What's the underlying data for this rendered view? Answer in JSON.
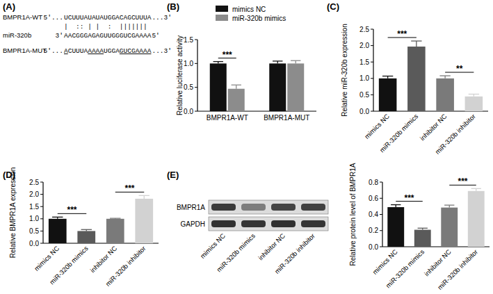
{
  "sequence_diagram": {
    "title": "(A)",
    "wt": {
      "label": "BMPR1A-WT",
      "prefix": "5'...",
      "sequence": "UCUUUAUAUAUGGACAGCUUUA",
      "suffix": "...3'"
    },
    "pairing": "|  :: | |  :  ||||||| ",
    "mirna": {
      "label": "miR-320b",
      "prefix": "3'",
      "sequence": "AACGGGAGAGUUGGGUCGAAAA",
      "suffix": "5'"
    },
    "mut": {
      "label": "BMPR1A-MUT",
      "prefix": "5'...",
      "segments": [
        {
          "text": "A",
          "underline": true
        },
        {
          "text": "CUUUA",
          "underline": false
        },
        {
          "text": "AAAA",
          "underline": true
        },
        {
          "text": "UGGA",
          "underline": false
        },
        {
          "text": "GUCGAAAA",
          "underline": true
        }
      ],
      "suffix": "...3'"
    }
  },
  "blot": {
    "proteins": [
      "BMPR1A",
      "GAPDH"
    ],
    "lanes": [
      "mimics NC",
      "miR-320b mimics",
      "inhibitor NC",
      "miR-320b inhibitor"
    ]
  },
  "chart_data": [
    {
      "type": "bar",
      "title": "(B)",
      "y_label": "Relative luciferase activity",
      "categories": [
        "BMPR1A-WT",
        "BMPR1A-MUT"
      ],
      "series": [
        {
          "name": "mimics NC",
          "color": "#111111",
          "values": [
            1.0,
            1.0
          ],
          "errors": [
            0.04,
            0.05
          ]
        },
        {
          "name": "miR-320b mimics",
          "color": "#8c8c8c",
          "values": [
            0.47,
            1.0
          ],
          "errors": [
            0.08,
            0.06
          ]
        }
      ],
      "ylim": [
        0,
        1.5
      ],
      "yticks": [
        {
          "value": 0,
          "label": "0.0"
        },
        {
          "value": 0.5,
          "label": "0.5"
        },
        {
          "value": 1,
          "label": "1.0"
        },
        {
          "value": 1.5,
          "label": "1.5"
        }
      ],
      "legend": "top",
      "annotations": [
        {
          "text": "***",
          "category": 0
        }
      ]
    },
    {
      "type": "bar",
      "title": "(C)",
      "y_label": "Relative miR-320b expression",
      "categories": [
        "mimics NC",
        "miR-320b mimics",
        "inhibitor NC",
        "miR-320b inhibitor"
      ],
      "values": [
        1.0,
        1.97,
        1.0,
        0.45
      ],
      "errors": [
        0.07,
        0.17,
        0.08,
        0.07
      ],
      "colors": [
        "#111111",
        "#5a5a5a",
        "#7a7a7a",
        "#d2d2d2"
      ],
      "ylim": [
        0,
        2.5
      ],
      "yticks": [
        {
          "value": 0,
          "label": "0.0"
        },
        {
          "value": 0.5,
          "label": "0.5"
        },
        {
          "value": 1,
          "label": "1.0"
        },
        {
          "value": 1.5,
          "label": "1.5"
        },
        {
          "value": 2,
          "label": "2.0"
        },
        {
          "value": 2.5,
          "label": "2.5"
        }
      ],
      "annotations": [
        {
          "text": "***",
          "from": 0,
          "to": 1
        },
        {
          "text": "**",
          "from": 2,
          "to": 3
        }
      ]
    },
    {
      "type": "bar",
      "title": "(D)",
      "y_label": "Relative BMPR1A expression",
      "categories": [
        "mimics NC",
        "miR-320b mimics",
        "inhibitor NC",
        "miR-320b inhibitor"
      ],
      "values": [
        1.0,
        0.5,
        1.0,
        1.82
      ],
      "errors": [
        0.07,
        0.06,
        0.02,
        0.13
      ],
      "colors": [
        "#111111",
        "#5a5a5a",
        "#7a7a7a",
        "#d2d2d2"
      ],
      "ylim": [
        0,
        2.5
      ],
      "yticks": [
        {
          "value": 0,
          "label": "0.0"
        },
        {
          "value": 0.5,
          "label": "0.5"
        },
        {
          "value": 1,
          "label": "1.0"
        },
        {
          "value": 1.5,
          "label": "1.5"
        },
        {
          "value": 2,
          "label": "2.0"
        },
        {
          "value": 2.5,
          "label": "2.5"
        }
      ],
      "annotations": [
        {
          "text": "***",
          "from": 0,
          "to": 1
        },
        {
          "text": "***",
          "from": 2,
          "to": 3
        }
      ]
    },
    {
      "type": "bar",
      "title": "(E)",
      "y_label": "Relative protein level of BMPR1A",
      "categories": [
        "mimics NC",
        "miR-320b mimics",
        "inhibitor NC",
        "miR-320b inhibitor"
      ],
      "values": [
        0.49,
        0.21,
        0.485,
        0.69
      ],
      "errors": [
        0.03,
        0.02,
        0.03,
        0.03
      ],
      "colors": [
        "#111111",
        "#5a5a5a",
        "#7a7a7a",
        "#d2d2d2"
      ],
      "ylim": [
        0,
        0.8
      ],
      "yticks": [
        {
          "value": 0,
          "label": "0.0"
        },
        {
          "value": 0.2,
          "label": "0.2"
        },
        {
          "value": 0.4,
          "label": "0.4"
        },
        {
          "value": 0.6,
          "label": "0.6"
        },
        {
          "value": 0.8,
          "label": "0.8"
        }
      ],
      "annotations": [
        {
          "text": "***",
          "from": 0,
          "to": 1
        },
        {
          "text": "***",
          "from": 2,
          "to": 3
        }
      ]
    }
  ]
}
